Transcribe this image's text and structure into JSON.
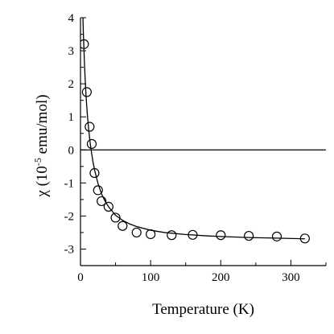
{
  "chart_data": {
    "type": "scatter",
    "xlabel": "Temperature (K)",
    "ylabel_prefix": "χ (10",
    "ylabel_exp": "-5",
    "ylabel_suffix": " emu/mol)",
    "xlim": [
      0,
      350
    ],
    "ylim": [
      -3.5,
      4
    ],
    "xticks": [
      0,
      100,
      200,
      300
    ],
    "xminor": [
      50,
      150,
      250,
      350
    ],
    "yticks": [
      -3,
      -2,
      -1,
      0,
      1,
      2,
      3,
      4
    ],
    "yminor": [
      -3.5,
      -2.5,
      -1.5,
      -0.5,
      0.5,
      1.5,
      2.5,
      3.5
    ],
    "reference_line_y": 0,
    "series": [
      {
        "marker": "open-circle",
        "x": [
          5,
          9,
          13,
          16,
          20,
          25,
          30,
          40,
          50,
          60,
          80,
          100,
          130,
          160,
          200,
          240,
          280,
          320
        ],
        "y": [
          3.2,
          1.75,
          0.7,
          0.18,
          -0.7,
          -1.22,
          -1.55,
          -1.72,
          -2.05,
          -2.3,
          -2.5,
          -2.55,
          -2.58,
          -2.57,
          -2.58,
          -2.6,
          -2.62,
          -2.68
        ]
      },
      {
        "style": "solid-line",
        "fit": true,
        "x": [
          3.5,
          4,
          5,
          6,
          7,
          8,
          9,
          10,
          12,
          14,
          16,
          18,
          20,
          25,
          30,
          35,
          40,
          50,
          60,
          70,
          80,
          100,
          120,
          150,
          180,
          200,
          240,
          280,
          320
        ],
        "y": [
          4.0,
          3.6,
          3.0,
          2.45,
          2.0,
          1.62,
          1.3,
          1.02,
          0.55,
          0.18,
          -0.12,
          -0.38,
          -0.6,
          -1.02,
          -1.33,
          -1.55,
          -1.72,
          -1.98,
          -2.13,
          -2.24,
          -2.32,
          -2.43,
          -2.5,
          -2.56,
          -2.6,
          -2.62,
          -2.65,
          -2.67,
          -2.69
        ]
      }
    ],
    "grid": false
  }
}
